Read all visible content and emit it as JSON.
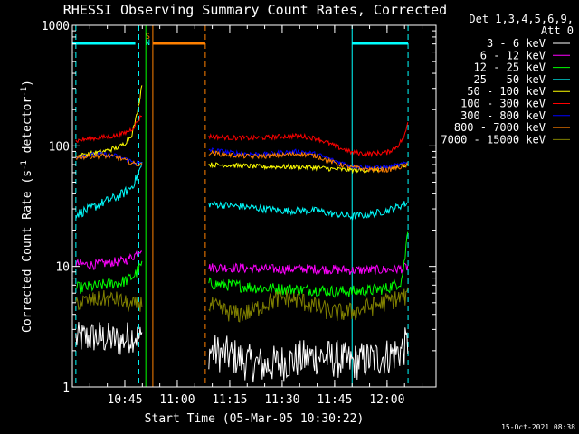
{
  "chart_data": {
    "type": "line",
    "title": "RHESSI Observing Summary Count Rates, Corrected",
    "xlabel": "Start Time (05-Mar-05 10:30:22)",
    "ylabel_main": "Corrected Count Rate (s",
    "ylabel_sup1": "-1",
    "ylabel_mid": " detector",
    "ylabel_sup2": "-1",
    "ylabel_end": ")",
    "y_scale": "log",
    "ylim": [
      1,
      1000
    ],
    "xlim": [
      "10:30",
      "12:14"
    ],
    "x_ticks": [
      "10:45",
      "11:00",
      "11:15",
      "11:30",
      "11:45",
      "12:00"
    ],
    "y_ticks": [
      "1",
      "10",
      "100",
      "1000"
    ],
    "detectors": "Det 1,3,4,5,6,9,",
    "attenuator": "Att 0",
    "timestamp": "15-Oct-2021 08:38",
    "legend_position": "right",
    "series": [
      {
        "name": "3 - 6 keV",
        "color": "#ffffff",
        "segments": [
          {
            "x": [
              "10:31",
              "10:36",
              "10:41",
              "10:44",
              "10:46",
              "10:48",
              "10:49",
              "10:50"
            ],
            "y": [
              2.5,
              2.6,
              2.5,
              2.4,
              2.6,
              2.7,
              2.5,
              2.5
            ],
            "noise": 0.14
          },
          {
            "x": [
              "11:09",
              "11:12",
              "11:16",
              "11:20",
              "11:25",
              "11:30",
              "11:35",
              "11:40",
              "11:45",
              "11:50",
              "11:55",
              "12:00",
              "12:04",
              "12:06"
            ],
            "y": [
              2.0,
              1.9,
              1.8,
              1.6,
              1.5,
              1.6,
              1.7,
              1.8,
              1.7,
              1.6,
              1.7,
              1.8,
              2.0,
              2.3
            ],
            "noise": 0.16
          }
        ]
      },
      {
        "name": "6 - 12 keV",
        "color": "#ff00ff",
        "segments": [
          {
            "x": [
              "10:31",
              "10:36",
              "10:41",
              "10:44",
              "10:46",
              "10:48",
              "10:49",
              "10:50"
            ],
            "y": [
              10.5,
              10.3,
              10.8,
              11.0,
              11.5,
              12.5,
              13.5,
              14.5
            ],
            "noise": 0.04
          },
          {
            "x": [
              "11:09",
              "11:15",
              "11:20",
              "11:25",
              "11:30",
              "11:35",
              "11:40",
              "11:45",
              "11:50",
              "11:55",
              "12:00",
              "12:04",
              "12:06"
            ],
            "y": [
              9.8,
              9.8,
              9.6,
              9.5,
              9.5,
              9.6,
              9.5,
              9.4,
              9.3,
              9.3,
              9.4,
              9.6,
              9.9
            ],
            "noise": 0.04
          }
        ]
      },
      {
        "name": "12 - 25 keV",
        "color": "#00ff00",
        "segments": [
          {
            "x": [
              "10:31",
              "10:36",
              "10:41",
              "10:44",
              "10:46",
              "10:48",
              "10:49",
              "10:50"
            ],
            "y": [
              6.6,
              6.8,
              7.2,
              7.4,
              7.8,
              8.6,
              9.5,
              10.5
            ],
            "noise": 0.05
          },
          {
            "x": [
              "11:09",
              "11:15",
              "11:20",
              "11:25",
              "11:30",
              "11:35",
              "11:40",
              "11:45",
              "11:50",
              "11:55",
              "12:00",
              "12:04",
              "12:05",
              "12:06"
            ],
            "y": [
              7.2,
              7.0,
              6.8,
              6.6,
              6.5,
              6.4,
              6.4,
              6.2,
              6.2,
              6.3,
              6.6,
              7.5,
              11.0,
              22.0
            ],
            "noise": 0.05
          }
        ]
      },
      {
        "name": "25 - 50 keV",
        "color": "#00ffff",
        "segments": [
          {
            "x": [
              "10:31",
              "10:35",
              "10:39",
              "10:43",
              "10:45",
              "10:47",
              "10:48",
              "10:49",
              "10:50"
            ],
            "y": [
              27,
              30,
              34,
              38,
              41,
              46,
              52,
              60,
              72
            ],
            "noise": 0.04
          },
          {
            "x": [
              "11:09",
              "11:15",
              "11:20",
              "11:25",
              "11:30",
              "11:35",
              "11:40",
              "11:45",
              "11:50",
              "11:55",
              "12:00",
              "12:04",
              "12:06"
            ],
            "y": [
              33,
              32,
              31,
              30,
              29,
              29,
              29,
              27,
              26,
              27,
              29,
              32,
              34
            ],
            "noise": 0.03
          }
        ]
      },
      {
        "name": "50 - 100 keV",
        "color": "#ffff00",
        "segments": [
          {
            "x": [
              "10:31",
              "10:35",
              "10:39",
              "10:43",
              "10:45",
              "10:47",
              "10:48",
              "10:49",
              "10:50"
            ],
            "y": [
              82,
              86,
              90,
              97,
              105,
              125,
              160,
              220,
              350
            ],
            "noise": 0.02
          },
          {
            "x": [
              "11:09",
              "11:15",
              "11:20",
              "11:25",
              "11:30",
              "11:35",
              "11:40",
              "11:45",
              "11:50",
              "11:55",
              "12:00",
              "12:04",
              "12:06"
            ],
            "y": [
              70,
              69,
              68,
              67,
              67,
              67,
              66,
              64,
              63,
              63,
              65,
              68,
              72
            ],
            "noise": 0.02
          }
        ]
      },
      {
        "name": "100 - 300 keV",
        "color": "#ff0000",
        "segments": [
          {
            "x": [
              "10:31",
              "10:35",
              "10:39",
              "10:43",
              "10:45",
              "10:47",
              "10:48",
              "10:49",
              "10:50"
            ],
            "y": [
              110,
              115,
              118,
              122,
              128,
              138,
              150,
              165,
              185
            ],
            "noise": 0.02
          },
          {
            "x": [
              "11:09",
              "11:15",
              "11:20",
              "11:25",
              "11:30",
              "11:35",
              "11:40",
              "11:45",
              "11:50",
              "11:55",
              "12:00",
              "12:03",
              "12:05",
              "12:06"
            ],
            "y": [
              120,
              117,
              116,
              117,
              120,
              121,
              115,
              100,
              88,
              86,
              88,
              100,
              120,
              160
            ],
            "noise": 0.02
          }
        ]
      },
      {
        "name": "300 - 800 keV",
        "color": "#0000ff",
        "segments": [
          {
            "x": [
              "10:31",
              "10:35",
              "10:39",
              "10:43",
              "10:45",
              "10:47",
              "10:49",
              "10:50"
            ],
            "y": [
              82,
              84,
              85,
              82,
              78,
              74,
              72,
              70
            ],
            "noise": 0.02
          },
          {
            "x": [
              "11:09",
              "11:15",
              "11:20",
              "11:25",
              "11:30",
              "11:35",
              "11:40",
              "11:45",
              "11:50",
              "11:55",
              "12:00",
              "12:04",
              "12:06"
            ],
            "y": [
              93,
              88,
              86,
              85,
              88,
              90,
              85,
              75,
              68,
              66,
              66,
              70,
              73
            ],
            "noise": 0.02
          }
        ]
      },
      {
        "name": "800 - 7000 keV",
        "color": "#ff8000",
        "segments": [
          {
            "x": [
              "10:31",
              "10:35",
              "10:39",
              "10:43",
              "10:45",
              "10:47",
              "10:49",
              "10:50"
            ],
            "y": [
              80,
              82,
              83,
              80,
              76,
              72,
              70,
              69
            ],
            "noise": 0.02
          },
          {
            "x": [
              "11:09",
              "11:15",
              "11:20",
              "11:25",
              "11:30",
              "11:35",
              "11:40",
              "11:45",
              "11:50",
              "11:55",
              "12:00",
              "12:04",
              "12:06"
            ],
            "y": [
              88,
              84,
              82,
              82,
              84,
              86,
              82,
              72,
              66,
              64,
              63,
              67,
              70
            ],
            "noise": 0.02
          }
        ]
      },
      {
        "name": "7000 - 15000 keV",
        "color": "#808000",
        "segments": [
          {
            "x": [
              "10:31",
              "10:35",
              "10:39",
              "10:43",
              "10:45",
              "10:47",
              "10:49",
              "10:50"
            ],
            "y": [
              5.0,
              5.2,
              5.4,
              5.3,
              5.0,
              4.7,
              4.9,
              5.0
            ],
            "noise": 0.07
          },
          {
            "x": [
              "11:09",
              "11:13",
              "11:17",
              "11:21",
              "11:25",
              "11:30",
              "11:35",
              "11:40",
              "11:45",
              "11:50",
              "11:55",
              "12:00",
              "12:04",
              "12:06"
            ],
            "y": [
              4.8,
              4.3,
              4.0,
              4.2,
              4.9,
              5.5,
              5.2,
              4.6,
              4.1,
              4.2,
              4.6,
              5.1,
              5.5,
              5.6
            ],
            "noise": 0.08
          }
        ]
      }
    ],
    "markers": [
      {
        "label": "",
        "x": "10:31",
        "color": "#00ffff",
        "style": "dashed"
      },
      {
        "label": "",
        "x": "10:49",
        "color": "#00ffff",
        "style": "dashed"
      },
      {
        "label": "",
        "x": "10:51",
        "color": "#00ff00",
        "style": "solid"
      },
      {
        "label": "",
        "x": "10:53",
        "color": "#ff8000",
        "style": "solid"
      },
      {
        "label": "",
        "x": "11:08",
        "color": "#ff8000",
        "style": "dashed"
      },
      {
        "label": "",
        "x": "11:50",
        "color": "#00ffff",
        "style": "solid"
      },
      {
        "label": "",
        "x": "12:06",
        "color": "#00ffff",
        "style": "dashed"
      }
    ],
    "top_bars": [
      {
        "x": [
          "10:30",
          "10:48"
        ],
        "color": "#00ffff"
      },
      {
        "x": [
          "10:53",
          "11:08"
        ],
        "color": "#ff8000"
      },
      {
        "x": [
          "11:50",
          "12:06"
        ],
        "color": "#00ffff"
      }
    ],
    "top_labels": [
      {
        "text": "S",
        "x": "10:51",
        "color": "#ff8000"
      },
      {
        "text": "N",
        "x": "10:51",
        "color": "#00ffff"
      }
    ]
  }
}
